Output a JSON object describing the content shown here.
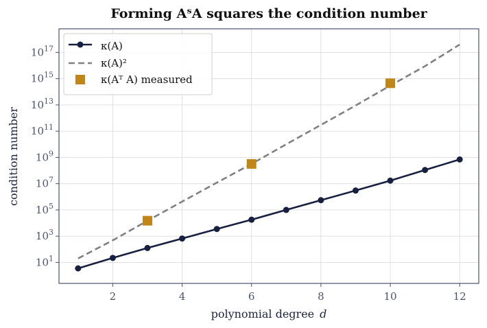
{
  "chart_data": {
    "type": "line",
    "title": "Forming AˢA squares the condition number",
    "xlabel": "polynomial degree",
    "xlabel_var": "d",
    "ylabel": "condition number",
    "xscale": "linear",
    "yscale": "log",
    "xlim": [
      0.45,
      12.55
    ],
    "ylim_log10": [
      -0.6,
      18.8
    ],
    "xticks": [
      2,
      4,
      6,
      8,
      10,
      12
    ],
    "yticks": [
      {
        "base": "10",
        "exp": "1",
        "log": 1
      },
      {
        "base": "10",
        "exp": "3",
        "log": 3
      },
      {
        "base": "10",
        "exp": "5",
        "log": 5
      },
      {
        "base": "10",
        "exp": "7",
        "log": 7
      },
      {
        "base": "10",
        "exp": "9",
        "log": 9
      },
      {
        "base": "10",
        "exp": "11",
        "log": 11
      },
      {
        "base": "10",
        "exp": "13",
        "log": 13
      },
      {
        "base": "10",
        "exp": "15",
        "log": 15
      },
      {
        "base": "10",
        "exp": "17",
        "log": 17
      }
    ],
    "grid": true,
    "legend_position": "top-left",
    "series": [
      {
        "name": "κ(A)",
        "style": "solid-line-markers",
        "color": "#18203f",
        "x": [
          1,
          2,
          3,
          4,
          5,
          6,
          7,
          8,
          9,
          10,
          11,
          12
        ],
        "y": [
          3.5,
          22,
          125,
          660,
          3500,
          18000,
          100000,
          550000,
          3000000,
          17000000,
          110000000,
          700000000
        ]
      },
      {
        "name": "κ(A)²",
        "style": "dashed-line",
        "color": "#808080",
        "x": [
          1,
          2,
          3,
          4,
          5,
          6,
          7,
          8,
          9,
          10,
          11,
          12
        ],
        "y": [
          20,
          480,
          15000,
          430000,
          12000000,
          320000000,
          10000000000,
          300000000000,
          9000000000000,
          300000000000000,
          9000000000000000,
          400000000000000000
        ]
      },
      {
        "name": "κ(Aᵀ A) measured",
        "style": "square-markers",
        "color": "#c0861a",
        "x": [
          3,
          6,
          10
        ],
        "y": [
          15000,
          320000000,
          450000000000000
        ]
      }
    ]
  }
}
